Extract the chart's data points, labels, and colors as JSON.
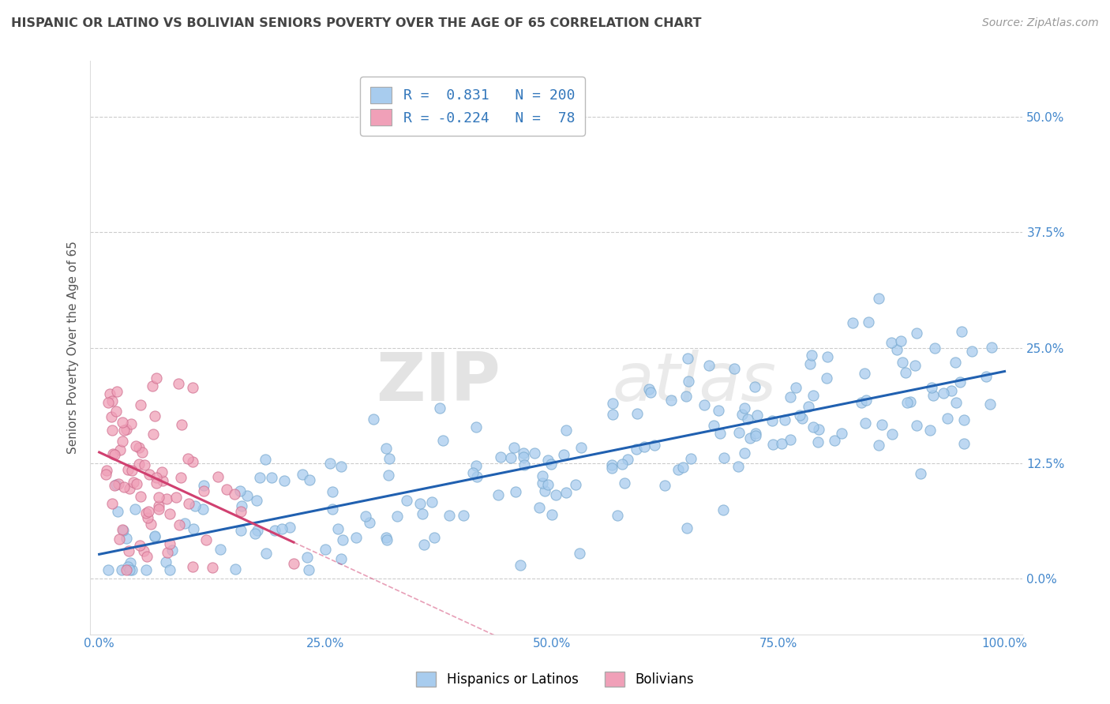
{
  "title": "HISPANIC OR LATINO VS BOLIVIAN SENIORS POVERTY OVER THE AGE OF 65 CORRELATION CHART",
  "source": "Source: ZipAtlas.com",
  "ylabel": "Seniors Poverty Over the Age of 65",
  "xlabel": "",
  "watermark_zip": "ZIP",
  "watermark_atlas": "atlas",
  "blue_R": 0.831,
  "blue_N": 200,
  "pink_R": -0.224,
  "pink_N": 78,
  "blue_color": "#A8CCEE",
  "pink_color": "#F0A0B8",
  "blue_edge_color": "#7AAAD0",
  "pink_edge_color": "#D07090",
  "blue_line_color": "#2060B0",
  "pink_line_color": "#D04070",
  "legend_label_blue": "Hispanics or Latinos",
  "legend_label_pink": "Bolivians",
  "xlim": [
    -0.01,
    1.02
  ],
  "ylim": [
    -0.06,
    0.56
  ],
  "yticks": [
    0.0,
    0.125,
    0.25,
    0.375,
    0.5
  ],
  "ytick_labels": [
    "0.0%",
    "12.5%",
    "25.0%",
    "37.5%",
    "50.0%"
  ],
  "xticks": [
    0.0,
    0.25,
    0.5,
    0.75,
    1.0
  ],
  "xtick_labels": [
    "0.0%",
    "25.0%",
    "50.0%",
    "75.0%",
    "100.0%"
  ],
  "background_color": "#FFFFFF",
  "grid_color": "#CCCCCC",
  "title_color": "#444444",
  "axis_label_color": "#555555",
  "tick_color": "#4488CC"
}
